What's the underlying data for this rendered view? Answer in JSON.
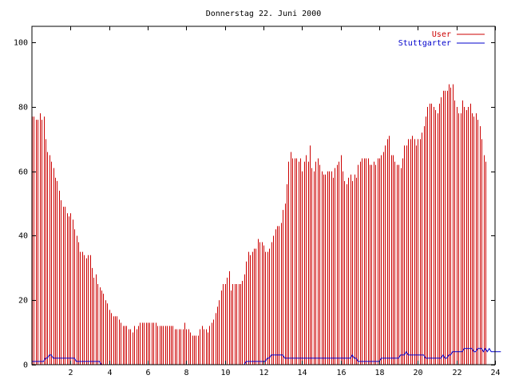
{
  "chart_data": {
    "type": "bar",
    "title": "Donnerstag 22. Juni 2000",
    "xlabel": "",
    "ylabel": "",
    "xlim": [
      0,
      24
    ],
    "ylim": [
      0,
      105
    ],
    "x_ticks": [
      "2",
      "4",
      "6",
      "8",
      "10",
      "12",
      "14",
      "16",
      "18",
      "20",
      "22",
      "24"
    ],
    "y_ticks": [
      "0",
      "20",
      "40",
      "60",
      "80",
      "100"
    ],
    "grid": false,
    "legend_position": "top-right",
    "x_step_hours": 0.1,
    "series": [
      {
        "name": "User",
        "type": "impulses",
        "color": "#cc0000",
        "values": [
          77,
          77,
          76,
          76,
          78,
          76,
          77,
          70,
          66,
          65,
          63,
          61,
          58,
          57,
          54,
          51,
          49,
          49,
          47,
          46,
          47,
          45,
          42,
          40,
          38,
          35,
          35,
          34,
          33,
          34,
          34,
          30,
          27,
          28,
          25,
          24,
          23,
          22,
          20,
          19,
          17,
          16,
          15,
          15,
          15,
          14,
          13,
          12,
          12,
          12,
          11,
          11,
          10,
          12,
          11,
          12,
          13,
          13,
          13,
          13,
          13,
          13,
          13,
          13,
          13,
          12,
          12,
          12,
          12,
          12,
          12,
          12,
          12,
          12,
          11,
          11,
          11,
          11,
          11,
          13,
          11,
          11,
          10,
          9,
          9,
          9,
          9,
          11,
          12,
          11,
          11,
          10,
          12,
          13,
          14,
          16,
          18,
          20,
          23,
          25,
          25,
          27,
          29,
          23,
          25,
          25,
          25,
          25,
          25,
          26,
          28,
          32,
          35,
          34,
          35,
          36,
          36,
          39,
          38,
          38,
          37,
          35,
          35,
          36,
          38,
          40,
          42,
          43,
          43,
          44,
          48,
          50,
          56,
          63,
          66,
          64,
          64,
          64,
          63,
          64,
          60,
          63,
          65,
          63,
          68,
          61,
          60,
          63,
          64,
          62,
          60,
          59,
          59,
          60,
          60,
          60,
          58,
          61,
          62,
          63,
          65,
          60,
          57,
          56,
          58,
          59,
          57,
          59,
          58,
          62,
          63,
          64,
          64,
          64,
          64,
          62,
          62,
          63,
          62,
          64,
          64,
          65,
          66,
          68,
          70,
          71,
          65,
          65,
          63,
          62,
          62,
          61,
          64,
          68,
          68,
          70,
          70,
          71,
          70,
          68,
          70,
          70,
          72,
          74,
          77,
          80,
          81,
          81,
          80,
          79,
          78,
          81,
          83,
          85,
          85,
          85,
          87,
          86,
          87,
          82,
          80,
          78,
          78,
          82,
          80,
          79,
          80,
          81,
          78,
          77,
          78,
          76,
          74,
          70,
          65,
          63
        ]
      },
      {
        "name": "Stuttgarter",
        "type": "line",
        "color": "#0000cc",
        "values": [
          1,
          1,
          1,
          1,
          1,
          1,
          1,
          2,
          2,
          3,
          3,
          2,
          2,
          2,
          2,
          2,
          2,
          2,
          2,
          2,
          2,
          2,
          2,
          1,
          1,
          1,
          1,
          1,
          1,
          1,
          1,
          1,
          1,
          1,
          1,
          1,
          0,
          0,
          0,
          0,
          0,
          0,
          0,
          0,
          0,
          0,
          0,
          0,
          0,
          0,
          0,
          0,
          0,
          0,
          0,
          0,
          0,
          0,
          0,
          0,
          0,
          0,
          0,
          0,
          0,
          0,
          0,
          0,
          0,
          0,
          0,
          0,
          0,
          0,
          0,
          0,
          0,
          0,
          0,
          0,
          0,
          0,
          0,
          0,
          0,
          0,
          0,
          0,
          0,
          0,
          0,
          0,
          0,
          0,
          0,
          0,
          0,
          0,
          0,
          0,
          0,
          0,
          0,
          0,
          0,
          0,
          0,
          0,
          0,
          0,
          0,
          1,
          1,
          1,
          1,
          1,
          1,
          1,
          1,
          1,
          1,
          1,
          2,
          2,
          3,
          3,
          3,
          3,
          3,
          3,
          3,
          2,
          2,
          2,
          2,
          2,
          2,
          2,
          2,
          2,
          2,
          2,
          2,
          2,
          2,
          2,
          2,
          2,
          2,
          2,
          2,
          2,
          2,
          2,
          2,
          2,
          2,
          2,
          2,
          2,
          2,
          2,
          2,
          2,
          2,
          2,
          3,
          2,
          2,
          1,
          1,
          1,
          1,
          1,
          1,
          1,
          1,
          1,
          1,
          1,
          1,
          2,
          2,
          2,
          2,
          2,
          2,
          2,
          2,
          2,
          2,
          3,
          3,
          3,
          4,
          3,
          3,
          3,
          3,
          3,
          3,
          3,
          3,
          3,
          2,
          2,
          2,
          2,
          2,
          2,
          2,
          2,
          2,
          3,
          2,
          2,
          3,
          3,
          4,
          4,
          4,
          4,
          4,
          4,
          5,
          5,
          5,
          5,
          5,
          4,
          4,
          5,
          5,
          5,
          4,
          5,
          4,
          5,
          4,
          4,
          4,
          4,
          4,
          4
        ]
      }
    ]
  }
}
